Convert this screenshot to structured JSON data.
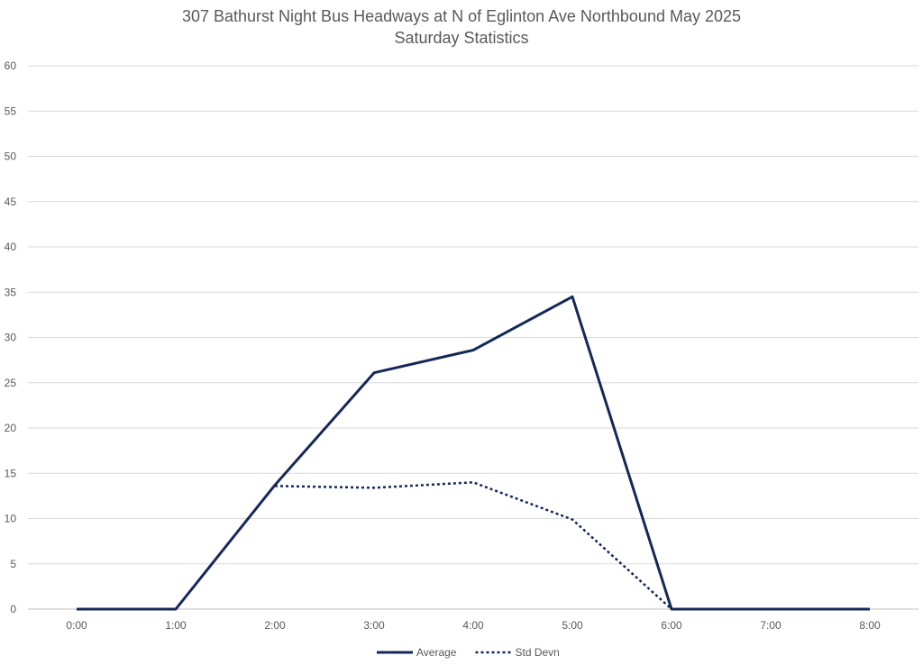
{
  "chart_data": {
    "type": "line",
    "title": "307 Bathurst Night Bus Headways at N of Eglinton Ave Northbound May 2025",
    "subtitle": "Saturday Statistics",
    "xlabel": "",
    "ylabel": "",
    "categories": [
      "0:00",
      "1:00",
      "2:00",
      "3:00",
      "4:00",
      "5:00",
      "6:00",
      "7:00",
      "8:00"
    ],
    "ylim": [
      0,
      60
    ],
    "yticks": [
      0,
      5,
      10,
      15,
      20,
      25,
      30,
      35,
      40,
      45,
      50,
      55,
      60
    ],
    "grid": true,
    "legend_position": "bottom",
    "series": [
      {
        "name": "Average",
        "style": "solid",
        "color": "#14285a",
        "values": [
          0,
          0,
          13.7,
          26.1,
          28.6,
          34.5,
          0,
          0,
          0
        ]
      },
      {
        "name": "Std Devn",
        "style": "dotted",
        "color": "#14285a",
        "values": [
          null,
          null,
          13.6,
          13.4,
          14.0,
          9.9,
          0,
          null,
          null
        ]
      }
    ]
  }
}
